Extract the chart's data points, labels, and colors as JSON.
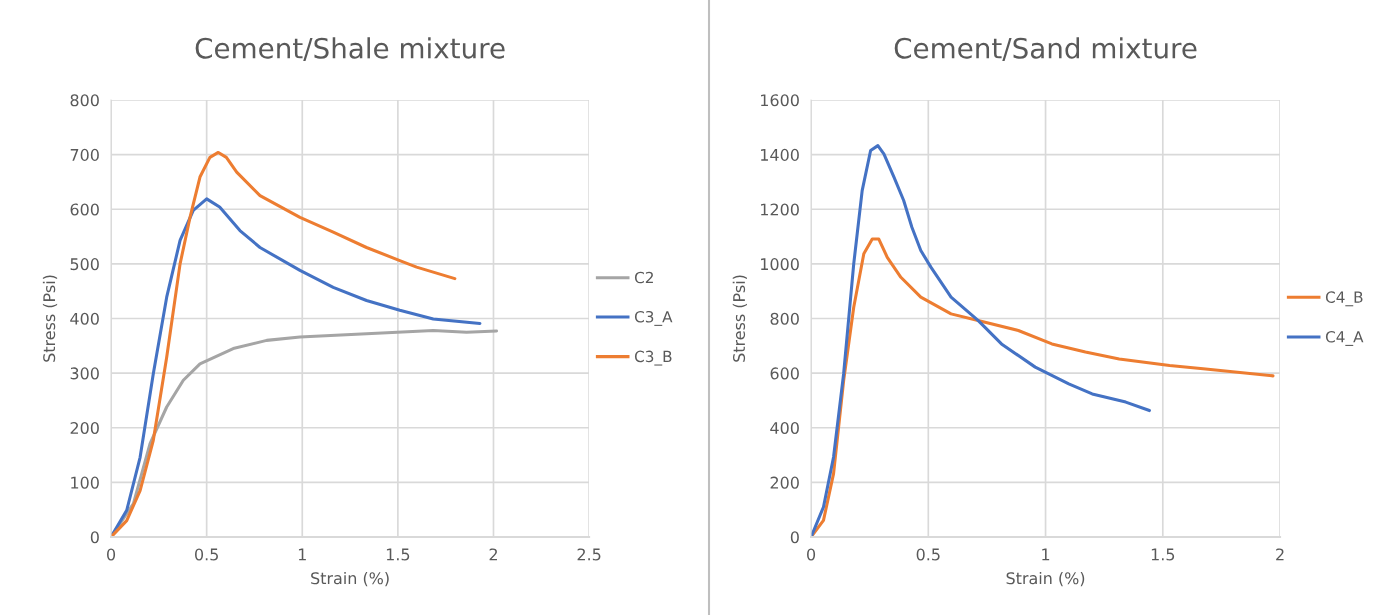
{
  "chart_data": [
    {
      "type": "line",
      "title": "Cement/Shale mixture",
      "xlabel": "Strain (%)",
      "ylabel": "Stress (Psi)",
      "xlim": [
        0,
        2.5
      ],
      "xticks": [
        0,
        0.5,
        1,
        1.5,
        2,
        2.5
      ],
      "ylim": [
        0,
        800
      ],
      "yticks": [
        0,
        100,
        200,
        300,
        400,
        500,
        600,
        700,
        800
      ],
      "grid": true,
      "legend": "right",
      "marker": "none",
      "line_style": "solid",
      "series": [
        {
          "name": "C2",
          "color": "#a5a5a5",
          "x": [
            0,
            0.117,
            0.204,
            0.291,
            0.378,
            0.465,
            0.639,
            0.814,
            0.988,
            1.336,
            1.685,
            1.859,
            2.016
          ],
          "values": [
            0,
            61,
            171,
            238,
            287,
            317,
            345,
            360,
            366,
            372,
            378,
            375,
            377
          ]
        },
        {
          "name": "C3_A",
          "color": "#4472c4",
          "x": [
            0,
            0.082,
            0.152,
            0.221,
            0.291,
            0.361,
            0.43,
            0.5,
            0.568,
            0.674,
            0.779,
            0.988,
            1.162,
            1.336,
            1.51,
            1.685,
            1.929
          ],
          "values": [
            0,
            49,
            146,
            299,
            439,
            543,
            598,
            619,
            604,
            561,
            530,
            488,
            457,
            433,
            415,
            399,
            391
          ]
        },
        {
          "name": "C3_B",
          "color": "#ed7d31",
          "x": [
            0,
            0.082,
            0.152,
            0.221,
            0.291,
            0.361,
            0.413,
            0.465,
            0.517,
            0.561,
            0.603,
            0.657,
            0.779,
            0.988,
            1.162,
            1.336,
            1.51,
            1.598,
            1.798
          ],
          "values": [
            0,
            30,
            85,
            177,
            329,
            500,
            585,
            659,
            695,
            704,
            695,
            668,
            625,
            585,
            558,
            530,
            506,
            494,
            473
          ]
        }
      ]
    },
    {
      "type": "line",
      "title": "Cement/Sand mixture",
      "xlabel": "Strain (%)",
      "ylabel": "Stress (Psi)",
      "xlim": [
        0,
        2
      ],
      "xticks": [
        0,
        0.5,
        1,
        1.5,
        2
      ],
      "ylim": [
        0,
        1600
      ],
      "yticks": [
        0,
        200,
        400,
        600,
        800,
        1000,
        1200,
        1400,
        1600
      ],
      "grid": true,
      "legend": "right",
      "marker": "none",
      "line_style": "solid",
      "series": [
        {
          "name": "C4_B",
          "color": "#ed7d31",
          "x": [
            0,
            0.053,
            0.096,
            0.139,
            0.182,
            0.225,
            0.261,
            0.289,
            0.325,
            0.383,
            0.468,
            0.597,
            0.712,
            0.884,
            1.027,
            1.17,
            1.314,
            1.529,
            1.672,
            1.97
          ],
          "values": [
            0,
            61,
            232,
            573,
            841,
            1037,
            1091,
            1091,
            1024,
            951,
            878,
            817,
            793,
            756,
            707,
            677,
            652,
            628,
            616,
            590
          ]
        },
        {
          "name": "C4_A",
          "color": "#4472c4",
          "x": [
            0,
            0.053,
            0.096,
            0.139,
            0.182,
            0.218,
            0.254,
            0.285,
            0.311,
            0.354,
            0.395,
            0.43,
            0.468,
            0.511,
            0.597,
            0.712,
            0.812,
            0.956,
            1.099,
            1.199,
            1.342,
            1.443
          ],
          "values": [
            0,
            110,
            293,
            598,
            1000,
            1268,
            1415,
            1433,
            1402,
            1317,
            1232,
            1134,
            1049,
            988,
            878,
            793,
            707,
            622,
            561,
            524,
            494,
            463
          ]
        }
      ]
    }
  ]
}
